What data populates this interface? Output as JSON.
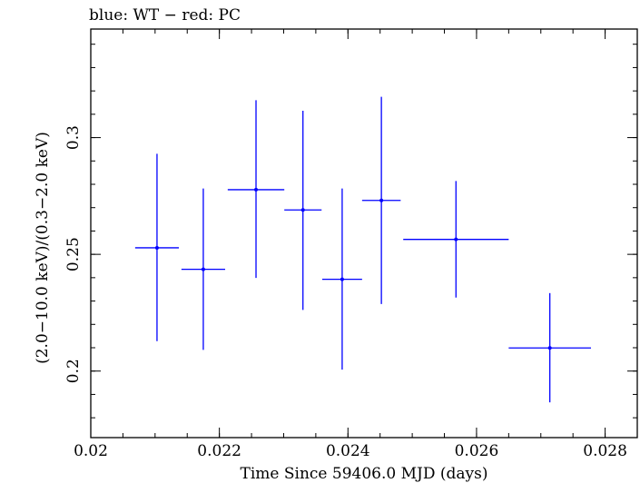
{
  "chart_data": {
    "type": "scatter",
    "title": "blue: WT − red: PC",
    "xlabel": "Time Since 59406.0 MJD (days)",
    "ylabel": "(2.0−10.0 keV)/(0.3−2.0 keV)",
    "xlim": [
      0.02,
      0.0285
    ],
    "ylim": [
      0.1715,
      0.3465
    ],
    "x_ticks": [
      {
        "value": 0.02,
        "label": "0.02"
      },
      {
        "value": 0.022,
        "label": "0.022"
      },
      {
        "value": 0.024,
        "label": "0.024"
      },
      {
        "value": 0.026,
        "label": "0.026"
      },
      {
        "value": 0.028,
        "label": "0.028"
      }
    ],
    "y_ticks": [
      {
        "value": 0.2,
        "label": "0.2"
      },
      {
        "value": 0.25,
        "label": "0.25"
      },
      {
        "value": 0.3,
        "label": "0.3"
      }
    ],
    "x_minor_step": 0.0005,
    "y_minor_step": 0.01,
    "grid": false,
    "series": [
      {
        "name": "WT",
        "color": "#0000ff",
        "points": [
          {
            "x": 0.02103,
            "y": 0.2528,
            "xerr": 0.00034,
            "y_low": 0.2128,
            "y_high": 0.2931
          },
          {
            "x": 0.02175,
            "y": 0.2436,
            "xerr": 0.00034,
            "y_low": 0.2091,
            "y_high": 0.2782
          },
          {
            "x": 0.02257,
            "y": 0.2777,
            "xerr": 0.00044,
            "y_low": 0.2399,
            "y_high": 0.316
          },
          {
            "x": 0.0233,
            "y": 0.269,
            "xerr": 0.00029,
            "y_low": 0.2262,
            "y_high": 0.3115
          },
          {
            "x": 0.02391,
            "y": 0.2393,
            "xerr": 0.00031,
            "y_low": 0.2006,
            "y_high": 0.2782
          },
          {
            "x": 0.02452,
            "y": 0.2731,
            "xerr": 0.0003,
            "y_low": 0.2287,
            "y_high": 0.3175
          },
          {
            "x": 0.02568,
            "y": 0.2564,
            "xerr": 0.00082,
            "y_low": 0.2315,
            "y_high": 0.2814
          },
          {
            "x": 0.02714,
            "y": 0.2099,
            "xerr": 0.00064,
            "y_low": 0.1866,
            "y_high": 0.2334
          }
        ]
      }
    ]
  }
}
